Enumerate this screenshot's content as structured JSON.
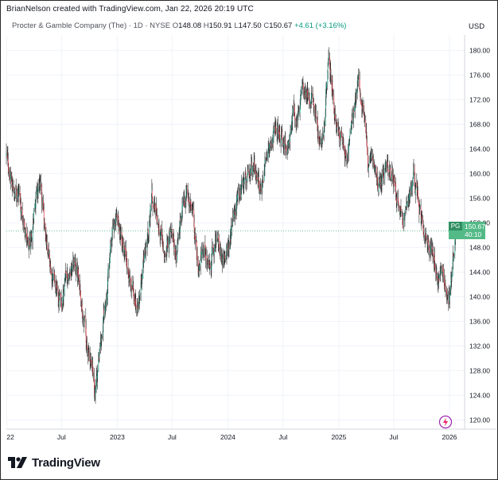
{
  "header": {
    "credit": "BrianNelson created with TradingView.com, Jan 22, 2026 20:19 UTC",
    "symbol_name": "Procter & Gamble Company (The) · 1D · NYSE",
    "open_label": "O",
    "open": "148.08",
    "high_label": "H",
    "high": "150.91",
    "low_label": "L",
    "low": "147.50",
    "close_label": "C",
    "close": "150.67",
    "change": "+4.61 (+3.16%)",
    "currency": "USD"
  },
  "price_badge": {
    "ticker": "PG",
    "price": "150.67",
    "countdown": "40:10"
  },
  "brand": {
    "name": "TradingView"
  },
  "colors": {
    "up": "#089981",
    "down": "#f23645",
    "badge": "#53b987",
    "grid": "#f0f3fa"
  },
  "icons": {
    "brand_logo": "tradingview-logo-icon",
    "bottom_right": "tradingview-lightning-icon"
  },
  "chart_data": {
    "type": "candlestick",
    "timeframe": "1D",
    "exchange": "NYSE",
    "y_ticks": [
      "120.00",
      "124.00",
      "128.00",
      "132.00",
      "136.00",
      "140.00",
      "144.00",
      "148.00",
      "152.00",
      "156.00",
      "160.00",
      "164.00",
      "168.00",
      "172.00",
      "176.00",
      "180.00"
    ],
    "ylim": [
      118.5,
      182.5
    ],
    "x_ticks": [
      {
        "label": "22",
        "date": "2022-01-01"
      },
      {
        "label": "Jul",
        "date": "2022-07-01"
      },
      {
        "label": "2023",
        "date": "2023-01-01"
      },
      {
        "label": "Jul",
        "date": "2023-07-01"
      },
      {
        "label": "2024",
        "date": "2024-01-01"
      },
      {
        "label": "Jul",
        "date": "2024-07-01"
      },
      {
        "label": "2025",
        "date": "2025-01-01"
      },
      {
        "label": "Jul",
        "date": "2025-07-01"
      },
      {
        "label": "2026",
        "date": "2026-01-01"
      }
    ],
    "xlim": [
      "2021-12-31",
      "2026-02-20"
    ],
    "last_price": 150.67,
    "price_path": [
      [
        "2021-12-31",
        162.5
      ],
      [
        "2022-01-20",
        158
      ],
      [
        "2022-02-10",
        157
      ],
      [
        "2022-02-28",
        152
      ],
      [
        "2022-03-15",
        148
      ],
      [
        "2022-04-05",
        155
      ],
      [
        "2022-04-20",
        159
      ],
      [
        "2022-05-10",
        149
      ],
      [
        "2022-06-01",
        143
      ],
      [
        "2022-06-20",
        140
      ],
      [
        "2022-07-01",
        138
      ],
      [
        "2022-07-20",
        144
      ],
      [
        "2022-08-15",
        146
      ],
      [
        "2022-09-01",
        141
      ],
      [
        "2022-09-20",
        133
      ],
      [
        "2022-10-10",
        127
      ],
      [
        "2022-10-20",
        124
      ],
      [
        "2022-11-15",
        136
      ],
      [
        "2022-12-15",
        150
      ],
      [
        "2023-01-01",
        152
      ],
      [
        "2023-01-20",
        148
      ],
      [
        "2023-02-10",
        143
      ],
      [
        "2023-03-10",
        138
      ],
      [
        "2023-04-01",
        147
      ],
      [
        "2023-04-25",
        156
      ],
      [
        "2023-05-15",
        153
      ],
      [
        "2023-06-05",
        148
      ],
      [
        "2023-06-25",
        151
      ],
      [
        "2023-07-15",
        146
      ],
      [
        "2023-08-01",
        154
      ],
      [
        "2023-08-20",
        157
      ],
      [
        "2023-09-10",
        152
      ],
      [
        "2023-09-25",
        145
      ],
      [
        "2023-10-15",
        148
      ],
      [
        "2023-11-01",
        145
      ],
      [
        "2023-11-20",
        149
      ],
      [
        "2023-12-15",
        147
      ],
      [
        "2024-01-10",
        149
      ],
      [
        "2024-02-01",
        156
      ],
      [
        "2024-02-20",
        159
      ],
      [
        "2024-03-10",
        160
      ],
      [
        "2024-03-28",
        162
      ],
      [
        "2024-04-15",
        157
      ],
      [
        "2024-05-01",
        161
      ],
      [
        "2024-05-20",
        165
      ],
      [
        "2024-06-10",
        167
      ],
      [
        "2024-06-25",
        166
      ],
      [
        "2024-07-15",
        164
      ],
      [
        "2024-08-01",
        168
      ],
      [
        "2024-08-20",
        171
      ],
      [
        "2024-09-05",
        175
      ],
      [
        "2024-09-25",
        172
      ],
      [
        "2024-10-15",
        170
      ],
      [
        "2024-10-31",
        166
      ],
      [
        "2024-11-15",
        168
      ],
      [
        "2024-11-27",
        179
      ],
      [
        "2024-12-15",
        172
      ],
      [
        "2025-01-05",
        165
      ],
      [
        "2025-01-25",
        163
      ],
      [
        "2025-02-15",
        168
      ],
      [
        "2025-03-05",
        176
      ],
      [
        "2025-03-20",
        171
      ],
      [
        "2025-04-08",
        162
      ],
      [
        "2025-04-25",
        160
      ],
      [
        "2025-05-15",
        158
      ],
      [
        "2025-06-05",
        161
      ],
      [
        "2025-06-25",
        159
      ],
      [
        "2025-07-15",
        156
      ],
      [
        "2025-07-31",
        152
      ],
      [
        "2025-08-20",
        156
      ],
      [
        "2025-09-05",
        159
      ],
      [
        "2025-09-25",
        154
      ],
      [
        "2025-10-10",
        150
      ],
      [
        "2025-10-25",
        148
      ],
      [
        "2025-11-10",
        146
      ],
      [
        "2025-11-25",
        142
      ],
      [
        "2025-12-10",
        144
      ],
      [
        "2025-12-20",
        141
      ],
      [
        "2026-01-02",
        140
      ],
      [
        "2026-01-12",
        145
      ],
      [
        "2026-01-22",
        150.67
      ]
    ]
  }
}
